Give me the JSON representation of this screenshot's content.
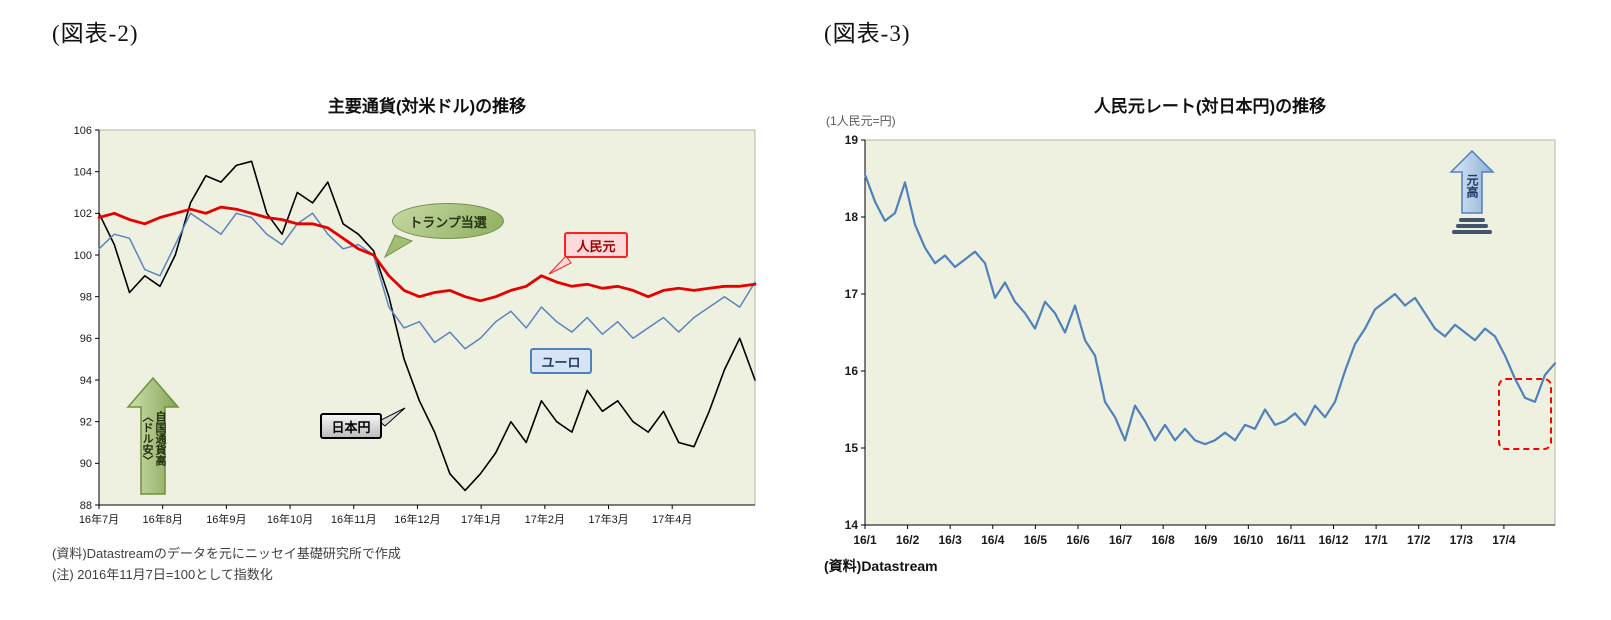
{
  "fig2": {
    "label": "(図表-2)",
    "title": "主要通貨(対米ドル)の推移",
    "source": "(資料)Datastreamのデータを元にニッセイ基礎研究所で作成",
    "note": "(注)  2016年11月7日=100として指数化",
    "annotations": {
      "trump": "トランプ当選",
      "cny": "人民元",
      "eur": "ユーロ",
      "jpy": "日本円",
      "arrow_col1": "自国通貨高",
      "arrow_col2": "〈ドル安〉"
    }
  },
  "fig3": {
    "label": "(図表-3)",
    "title": "人民元レート(対日本円)の推移",
    "unit": "(1人民元=円)",
    "source": "(資料)Datastream",
    "annotations": {
      "arrow": "元高"
    }
  },
  "chart_data": [
    {
      "type": "line",
      "title": "主要通貨(対米ドル)の推移",
      "note": "2016年11月7日=100として指数化",
      "ylim": [
        88,
        106
      ],
      "ytick_step": 2,
      "plot_bg": "#eef1e0",
      "grid": false,
      "x_tick_labels": [
        "16年7月",
        "16年8月",
        "16年9月",
        "16年10月",
        "16年11月",
        "16年12月",
        "17年1月",
        "17年2月",
        "17年3月",
        "17年4月"
      ],
      "x_tick_span": 10.3,
      "series": [
        {
          "name": "日本円",
          "color": "#000000",
          "width": 1.6,
          "values": [
            102.0,
            100.5,
            98.2,
            99.0,
            98.5,
            100.0,
            102.5,
            103.8,
            103.5,
            104.3,
            104.5,
            102.0,
            101.0,
            103.0,
            102.5,
            103.5,
            101.5,
            101.0,
            100.2,
            98.0,
            95.0,
            93.0,
            91.5,
            89.5,
            88.7,
            89.5,
            90.5,
            92.0,
            91.0,
            93.0,
            92.0,
            91.5,
            93.5,
            92.5,
            93.0,
            92.0,
            91.5,
            92.5,
            91.0,
            90.8,
            92.5,
            94.5,
            96.0,
            94.0
          ]
        },
        {
          "name": "ユーロ",
          "color": "#5b84bf",
          "width": 1.5,
          "values": [
            100.3,
            101.0,
            100.8,
            99.3,
            99.0,
            100.5,
            102.0,
            101.5,
            101.0,
            102.0,
            101.8,
            101.0,
            100.5,
            101.5,
            102.0,
            101.0,
            100.3,
            100.5,
            100.0,
            97.5,
            96.5,
            96.8,
            95.8,
            96.3,
            95.5,
            96.0,
            96.8,
            97.3,
            96.5,
            97.5,
            96.8,
            96.3,
            97.0,
            96.2,
            96.8,
            96.0,
            96.5,
            97.0,
            96.3,
            97.0,
            97.5,
            98.0,
            97.5,
            98.7
          ]
        },
        {
          "name": "人民元",
          "color": "#e60000",
          "width": 2.8,
          "values": [
            101.8,
            102.0,
            101.7,
            101.5,
            101.8,
            102.0,
            102.2,
            102.0,
            102.3,
            102.2,
            102.0,
            101.8,
            101.7,
            101.5,
            101.5,
            101.3,
            100.8,
            100.3,
            100.0,
            99.0,
            98.3,
            98.0,
            98.2,
            98.3,
            98.0,
            97.8,
            98.0,
            98.3,
            98.5,
            99.0,
            98.7,
            98.5,
            98.6,
            98.4,
            98.5,
            98.3,
            98.0,
            98.3,
            98.4,
            98.3,
            98.4,
            98.5,
            98.5,
            98.6
          ]
        }
      ]
    },
    {
      "type": "line",
      "title": "人民元レート(対日本円)の推移",
      "ylabel": "(1人民元=円)",
      "ylim": [
        14,
        19
      ],
      "ytick_step": 1,
      "plot_bg": "#eef1e0",
      "grid": false,
      "x_tick_labels": [
        "16/1",
        "16/2",
        "16/3",
        "16/4",
        "16/5",
        "16/6",
        "16/7",
        "16/8",
        "16/9",
        "16/10",
        "16/11",
        "16/12",
        "17/1",
        "17/2",
        "17/3",
        "17/4"
      ],
      "x_tick_span": 16.2,
      "series": [
        {
          "name": "人民元レート(対日本円)",
          "color": "#4f81bd",
          "width": 2.2,
          "values": [
            18.55,
            18.2,
            17.95,
            18.05,
            18.45,
            17.9,
            17.6,
            17.4,
            17.5,
            17.35,
            17.45,
            17.55,
            17.4,
            16.95,
            17.15,
            16.9,
            16.75,
            16.55,
            16.9,
            16.75,
            16.5,
            16.85,
            16.4,
            16.2,
            15.6,
            15.4,
            15.1,
            15.55,
            15.35,
            15.1,
            15.3,
            15.1,
            15.25,
            15.1,
            15.05,
            15.1,
            15.2,
            15.1,
            15.3,
            15.25,
            15.5,
            15.3,
            15.35,
            15.45,
            15.3,
            15.55,
            15.4,
            15.6,
            16.0,
            16.35,
            16.55,
            16.8,
            16.9,
            17.0,
            16.85,
            16.95,
            16.75,
            16.55,
            16.45,
            16.6,
            16.5,
            16.4,
            16.55,
            16.45,
            16.2,
            15.9,
            15.65,
            15.6,
            15.95,
            16.1
          ]
        }
      ]
    }
  ]
}
